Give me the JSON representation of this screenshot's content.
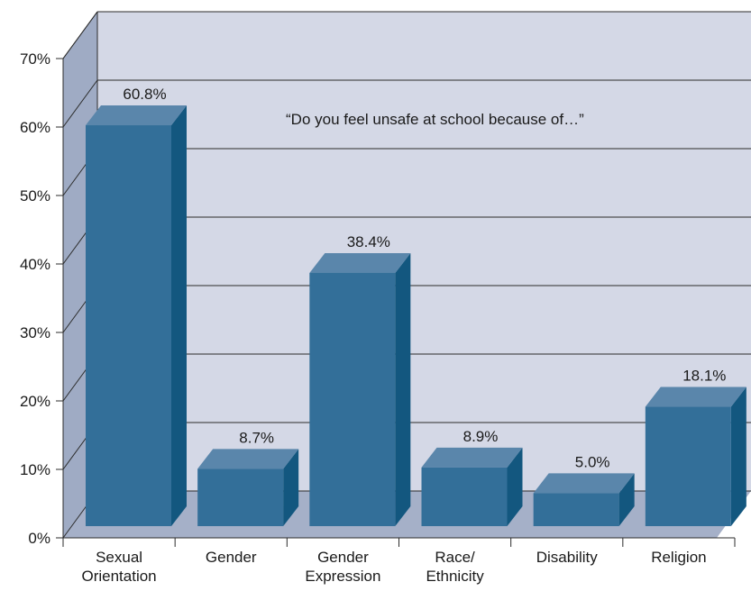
{
  "chart_data": {
    "type": "bar",
    "style": "3d",
    "annotation": "“Do you feel unsafe at school because of…”",
    "categories": [
      [
        "Sexual",
        "Orientation"
      ],
      [
        "Gender"
      ],
      [
        "Gender",
        "Expression"
      ],
      [
        "Race/",
        "Ethnicity"
      ],
      [
        "Disability"
      ],
      [
        "Religion"
      ]
    ],
    "values": [
      60.8,
      8.7,
      38.4,
      8.9,
      5.0,
      18.1
    ],
    "data_labels": [
      "60.8%",
      "8.7%",
      "38.4%",
      "8.9%",
      "5.0%",
      "18.1%"
    ],
    "yticks": [
      "0%",
      "10%",
      "20%",
      "30%",
      "40%",
      "50%",
      "60%",
      "70%"
    ],
    "ylim": [
      0,
      70
    ],
    "grid": true,
    "legend": "none",
    "colors": {
      "bar_front": "#336f99",
      "bar_top": "#5a86ab",
      "bar_side": "#13577f",
      "back_wall": "#d4d8e6",
      "left_wall": "#9fabc4",
      "floor": "#a5b0c8",
      "grid": "#2b2b2b"
    }
  }
}
